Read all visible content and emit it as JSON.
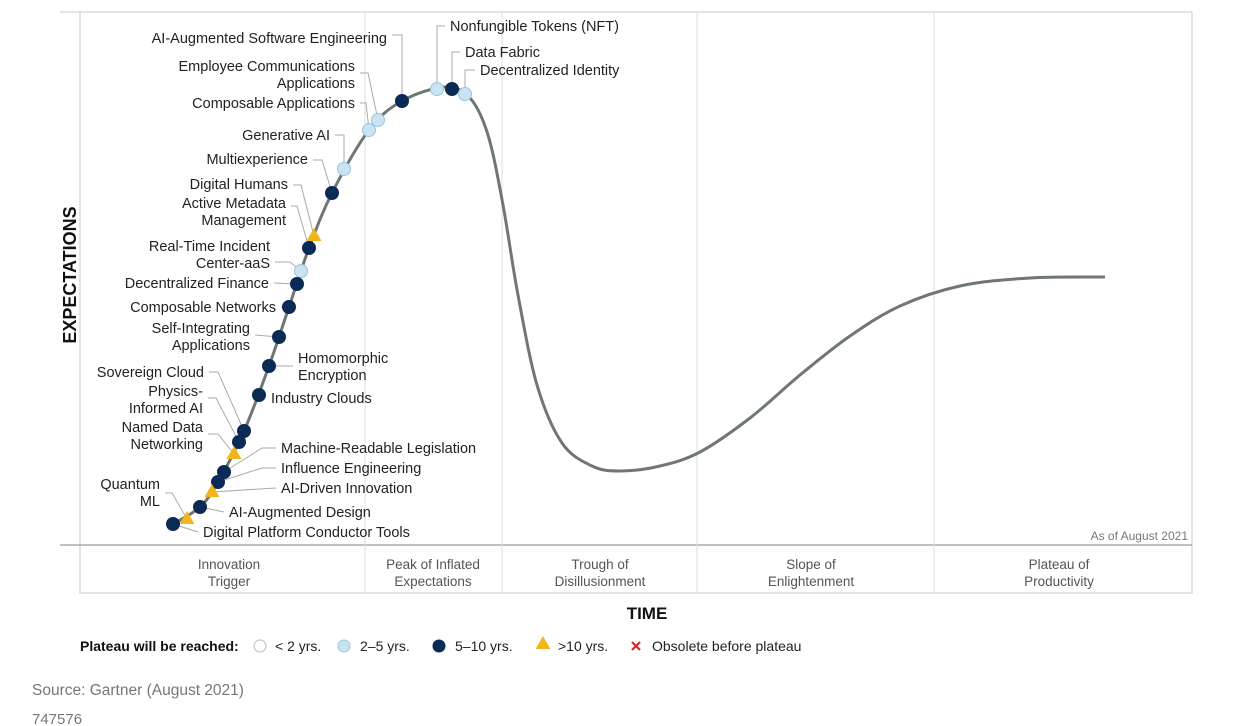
{
  "y_axis_label": "EXPECTATIONS",
  "x_axis_label": "TIME",
  "phases": [
    [
      "Innovation",
      "Trigger"
    ],
    [
      "Peak of Inflated",
      "Expectations"
    ],
    [
      "Trough of",
      "Disillusionment"
    ],
    [
      "Slope of",
      "Enlightenment"
    ],
    [
      "Plateau of",
      "Productivity"
    ]
  ],
  "as_of": "As of August 2021",
  "legend": {
    "title": "Plateau will be reached:",
    "items": [
      {
        "label": "< 2 yrs.",
        "category": "lt2"
      },
      {
        "label": "2–5 yrs.",
        "category": "2to5"
      },
      {
        "label": "5–10 yrs.",
        "category": "5to10"
      },
      {
        "label": ">10 yrs.",
        "category": "gt10"
      },
      {
        "label": "Obsolete before plateau",
        "category": "obsolete"
      }
    ]
  },
  "colors": {
    "lt2": "#ffffff",
    "2to5": "#c8e3f2",
    "5to10": "#0b2a55",
    "gt10": "#f2b51c",
    "obsolete": "#d9262b",
    "curve": "#6e7774"
  },
  "items": [
    {
      "lines": [
        "AI-Augmented Software Engineering"
      ],
      "category": "5to10"
    },
    {
      "lines": [
        "Employee Communications",
        "Applications"
      ],
      "category": "2to5"
    },
    {
      "lines": [
        "Composable Applications"
      ],
      "category": "2to5"
    },
    {
      "lines": [
        "Generative AI"
      ],
      "category": "2to5"
    },
    {
      "lines": [
        "Multiexperience"
      ],
      "category": "5to10"
    },
    {
      "lines": [
        "Digital Humans"
      ],
      "category": "gt10"
    },
    {
      "lines": [
        "Active Metadata",
        "Management"
      ],
      "category": "5to10"
    },
    {
      "lines": [
        "Real-Time Incident",
        "Center-aaS"
      ],
      "category": "2to5"
    },
    {
      "lines": [
        "Decentralized Finance"
      ],
      "category": "5to10"
    },
    {
      "lines": [
        "Composable Networks"
      ],
      "category": "5to10"
    },
    {
      "lines": [
        "Self-Integrating",
        "Applications"
      ],
      "category": "5to10"
    },
    {
      "lines": [
        "Homomorphic",
        "Encryption"
      ],
      "category": "5to10"
    },
    {
      "lines": [
        "Industry Clouds"
      ],
      "category": "5to10"
    },
    {
      "lines": [
        "Sovereign Cloud"
      ],
      "category": "5to10"
    },
    {
      "lines": [
        "Physics-",
        "Informed AI"
      ],
      "category": "5to10"
    },
    {
      "lines": [
        "Named Data",
        "Networking"
      ],
      "category": "gt10"
    },
    {
      "lines": [
        "Machine-Readable Legislation"
      ],
      "category": "5to10"
    },
    {
      "lines": [
        "Influence Engineering"
      ],
      "category": "5to10"
    },
    {
      "lines": [
        "AI-Driven Innovation"
      ],
      "category": "gt10"
    },
    {
      "lines": [
        "Quantum",
        "ML"
      ],
      "category": "gt10"
    },
    {
      "lines": [
        "AI-Augmented Design"
      ],
      "category": "5to10"
    },
    {
      "lines": [
        "Digital Platform Conductor Tools"
      ],
      "category": "5to10"
    },
    {
      "lines": [
        "Nonfungible Tokens (NFT)"
      ],
      "category": "2to5"
    },
    {
      "lines": [
        "Data Fabric"
      ],
      "category": "5to10"
    },
    {
      "lines": [
        "Decentralized Identity"
      ],
      "category": "2to5"
    }
  ],
  "source": "Source: Gartner (August 2021)",
  "figure_id": "747576"
}
